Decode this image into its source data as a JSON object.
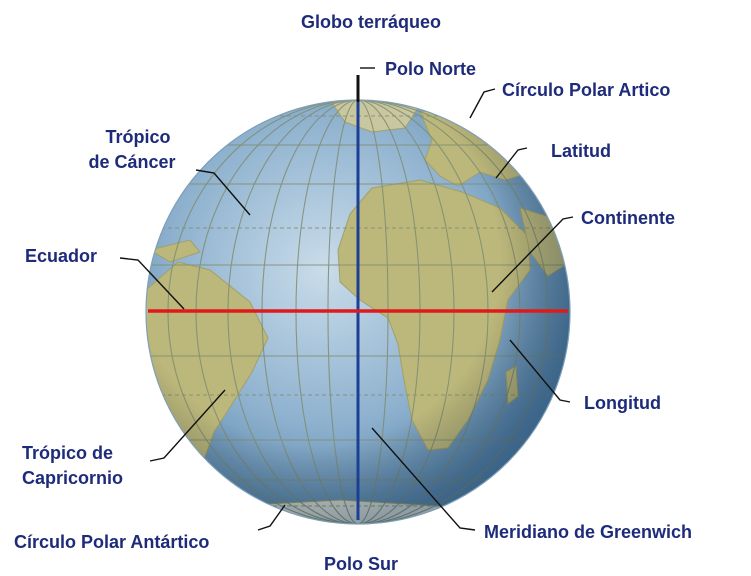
{
  "title": "Globo terráqueo",
  "labels": {
    "polo_norte": "Polo Norte",
    "circulo_polar_artico": "Círculo Polar Artico",
    "tropico_cancer_line1": "Trópico",
    "tropico_cancer_line2": "de Cáncer",
    "latitud": "Latitud",
    "continente": "Continente",
    "ecuador": "Ecuador",
    "longitud": "Longitud",
    "tropico_capricornio_line1": "Trópico de",
    "tropico_capricornio_line2": "Capricornio",
    "circulo_polar_antartico": "Círculo Polar Antártico",
    "meridiano_greenwich": "Meridiano de Greenwich",
    "polo_sur": "Polo Sur"
  },
  "colors": {
    "label_text": "#1d2b7a",
    "equator": "#e01a1a",
    "greenwich_meridian": "#1c3f96",
    "ocean_light": "#a9c6dc",
    "ocean_dark": "#5f8fb4",
    "land": "#b9b87a",
    "grid": "#7d8a6e"
  }
}
